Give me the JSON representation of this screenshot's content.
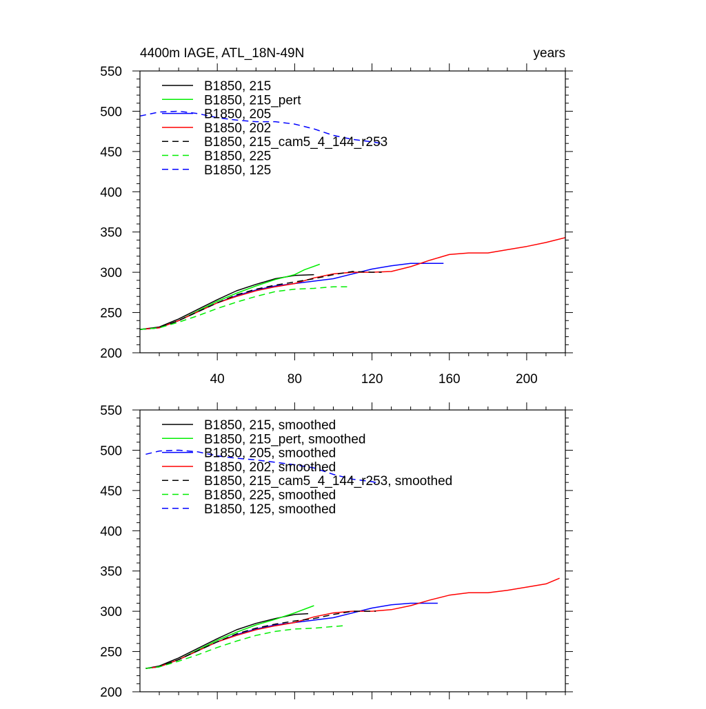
{
  "chart_data": [
    {
      "type": "line",
      "title": "4400m IAGE, ATL_18N-49N",
      "units_label": "years",
      "xlabel": "",
      "ylabel": "",
      "xlim": [
        0,
        220
      ],
      "ylim": [
        200,
        550
      ],
      "x_ticks": [
        40,
        80,
        120,
        160,
        200
      ],
      "x_tick_labels": [
        "40",
        "80",
        "120",
        "160",
        "200"
      ],
      "y_ticks": [
        200,
        250,
        300,
        350,
        400,
        450,
        500,
        550
      ],
      "y_tick_labels": [
        "200",
        "250",
        "300",
        "350",
        "400",
        "450",
        "500",
        "550"
      ],
      "grid": false,
      "legend_position": "top-left",
      "series": [
        {
          "name": "B1850, 215",
          "color": "#000000",
          "dash": "solid",
          "x": [
            0,
            10,
            20,
            30,
            40,
            50,
            60,
            70,
            80,
            90
          ],
          "y": [
            229,
            232,
            242,
            254,
            266,
            277,
            285,
            292,
            296,
            297
          ]
        },
        {
          "name": "B1850, 215_pert",
          "color": "#00ee00",
          "dash": "solid",
          "x": [
            0,
            10,
            20,
            30,
            40,
            50,
            60,
            70,
            80,
            85,
            93
          ],
          "y": [
            229,
            231,
            240,
            252,
            264,
            274,
            283,
            291,
            297,
            303,
            310
          ]
        },
        {
          "name": "B1850, 205",
          "color": "#0000ff",
          "dash": "solid",
          "x": [
            0,
            10,
            20,
            30,
            40,
            50,
            60,
            70,
            80,
            90,
            100,
            110,
            120,
            130,
            140,
            150,
            157
          ],
          "y": [
            229,
            231,
            240,
            251,
            262,
            271,
            278,
            283,
            286,
            289,
            292,
            298,
            304,
            308,
            311,
            311,
            311
          ]
        },
        {
          "name": "B1850, 202",
          "color": "#ff0000",
          "dash": "solid",
          "x": [
            0,
            10,
            20,
            30,
            40,
            50,
            60,
            70,
            80,
            90,
            100,
            110,
            120,
            130,
            140,
            150,
            160,
            170,
            180,
            190,
            200,
            210,
            220
          ],
          "y": [
            229,
            231,
            240,
            251,
            262,
            270,
            277,
            282,
            286,
            293,
            298,
            300,
            300,
            301,
            307,
            315,
            322,
            324,
            324,
            328,
            332,
            337,
            343
          ]
        },
        {
          "name": "B1850, 215_cam5_4_144_r253",
          "color": "#000000",
          "dash": "dashed",
          "x": [
            0,
            10,
            20,
            30,
            40,
            50,
            60,
            70,
            80,
            90,
            100,
            110,
            120,
            125
          ],
          "y": [
            229,
            231,
            240,
            251,
            262,
            272,
            279,
            284,
            288,
            292,
            297,
            301,
            300,
            300
          ]
        },
        {
          "name": "B1850, 225",
          "color": "#00ee00",
          "dash": "dashed",
          "x": [
            0,
            10,
            20,
            30,
            40,
            50,
            60,
            70,
            80,
            90,
            100,
            108
          ],
          "y": [
            229,
            231,
            238,
            246,
            255,
            263,
            270,
            276,
            279,
            280,
            282,
            282
          ]
        },
        {
          "name": "B1850, 125",
          "color": "#0000ff",
          "dash": "dashed",
          "x": [
            0,
            10,
            20,
            30,
            40,
            50,
            60,
            70,
            80,
            90,
            100,
            110,
            120,
            125
          ],
          "y": [
            494,
            499,
            500,
            497,
            492,
            489,
            487,
            487,
            484,
            478,
            470,
            465,
            462,
            460
          ]
        }
      ]
    },
    {
      "type": "line",
      "title": "",
      "units_label": "",
      "xlabel": "",
      "ylabel": "",
      "xlim": [
        0,
        220
      ],
      "ylim": [
        200,
        550
      ],
      "x_ticks": [
        40,
        80,
        120,
        160,
        200
      ],
      "x_tick_labels": [],
      "y_ticks": [
        200,
        250,
        300,
        350,
        400,
        450,
        500,
        550
      ],
      "y_tick_labels": [
        "200",
        "250",
        "300",
        "350",
        "400",
        "450",
        "500",
        "550"
      ],
      "grid": false,
      "legend_position": "top-left",
      "series": [
        {
          "name": "B1850, 215, smoothed",
          "color": "#000000",
          "dash": "solid",
          "x": [
            3,
            10,
            20,
            30,
            40,
            50,
            60,
            70,
            80,
            87
          ],
          "y": [
            229,
            232,
            242,
            254,
            266,
            277,
            285,
            291,
            296,
            297
          ]
        },
        {
          "name": "B1850, 215_pert, smoothed",
          "color": "#00ee00",
          "dash": "solid",
          "x": [
            3,
            10,
            20,
            30,
            40,
            50,
            60,
            70,
            80,
            90
          ],
          "y": [
            229,
            231,
            240,
            252,
            264,
            274,
            283,
            290,
            298,
            307
          ]
        },
        {
          "name": "B1850, 205, smoothed",
          "color": "#0000ff",
          "dash": "solid",
          "x": [
            3,
            10,
            20,
            30,
            40,
            50,
            60,
            70,
            80,
            90,
            100,
            110,
            120,
            130,
            140,
            150,
            154
          ],
          "y": [
            229,
            231,
            240,
            251,
            262,
            271,
            278,
            283,
            286,
            289,
            292,
            298,
            304,
            308,
            310,
            310,
            310
          ]
        },
        {
          "name": "B1850, 202, smoothed",
          "color": "#ff0000",
          "dash": "solid",
          "x": [
            3,
            10,
            20,
            30,
            40,
            50,
            60,
            70,
            80,
            90,
            100,
            110,
            120,
            130,
            140,
            150,
            160,
            170,
            180,
            190,
            200,
            210,
            217
          ],
          "y": [
            229,
            231,
            240,
            251,
            262,
            270,
            277,
            282,
            286,
            293,
            298,
            300,
            300,
            302,
            307,
            314,
            320,
            323,
            323,
            326,
            330,
            334,
            341
          ]
        },
        {
          "name": "B1850, 215_cam5_4_144_r253, smoothed",
          "color": "#000000",
          "dash": "dashed",
          "x": [
            3,
            10,
            20,
            30,
            40,
            50,
            60,
            70,
            80,
            90,
            100,
            110,
            120,
            122
          ],
          "y": [
            229,
            231,
            240,
            251,
            262,
            272,
            279,
            284,
            288,
            291,
            296,
            300,
            300,
            300
          ]
        },
        {
          "name": "B1850, 225, smoothed",
          "color": "#00ee00",
          "dash": "dashed",
          "x": [
            3,
            10,
            20,
            30,
            40,
            50,
            60,
            70,
            80,
            90,
            100,
            105
          ],
          "y": [
            229,
            231,
            238,
            246,
            255,
            263,
            270,
            275,
            278,
            279,
            281,
            282
          ]
        },
        {
          "name": "B1850, 125, smoothed",
          "color": "#0000ff",
          "dash": "dashed",
          "x": [
            3,
            10,
            20,
            30,
            40,
            50,
            60,
            70,
            80,
            90,
            100,
            110,
            120,
            122
          ],
          "y": [
            495,
            499,
            500,
            498,
            493,
            490,
            488,
            485,
            482,
            478,
            470,
            464,
            461,
            460
          ]
        }
      ]
    }
  ]
}
